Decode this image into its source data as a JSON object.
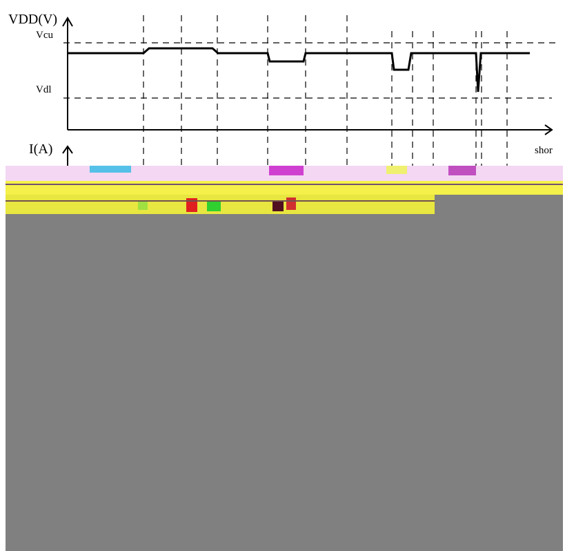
{
  "axes": {
    "voltage_label": "VDD(V)",
    "upper_threshold": "Vcu",
    "lower_threshold": "Vdl",
    "current_label": "I(A)",
    "fragment": "shor"
  }
}
